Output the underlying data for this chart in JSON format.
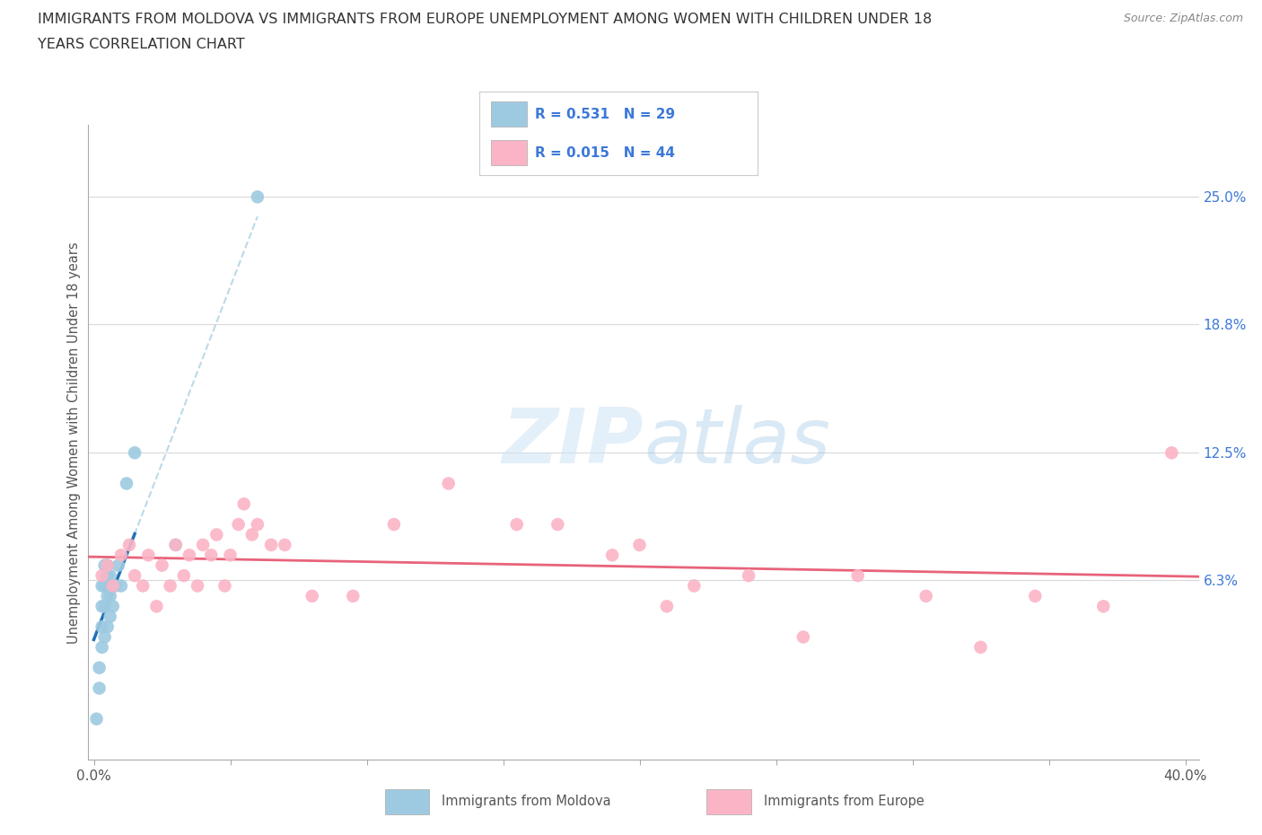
{
  "title_line1": "IMMIGRANTS FROM MOLDOVA VS IMMIGRANTS FROM EUROPE UNEMPLOYMENT AMONG WOMEN WITH CHILDREN UNDER 18",
  "title_line2": "YEARS CORRELATION CHART",
  "source": "Source: ZipAtlas.com",
  "ylabel": "Unemployment Among Women with Children Under 18 years",
  "xlim": [
    -0.002,
    0.405
  ],
  "ylim": [
    -0.025,
    0.285
  ],
  "xticks": [
    0.0,
    0.05,
    0.1,
    0.15,
    0.2,
    0.25,
    0.3,
    0.35,
    0.4
  ],
  "right_ytick_vals": [
    0.063,
    0.125,
    0.188,
    0.25
  ],
  "right_ytick_labels": [
    "6.3%",
    "12.5%",
    "18.8%",
    "25.0%"
  ],
  "moldova_color": "#9ecae1",
  "europe_color": "#fbb4c6",
  "moldova_R": 0.531,
  "moldova_N": 29,
  "europe_R": 0.015,
  "europe_N": 44,
  "moldova_line_color": "#2171b5",
  "moldova_dash_color": "#9ecae1",
  "europe_line_color": "#e8637a",
  "grid_color": "#d9d9d9",
  "moldova_points_x": [
    0.001,
    0.002,
    0.002,
    0.003,
    0.003,
    0.003,
    0.003,
    0.004,
    0.004,
    0.004,
    0.004,
    0.005,
    0.005,
    0.005,
    0.005,
    0.005,
    0.006,
    0.006,
    0.006,
    0.006,
    0.007,
    0.007,
    0.008,
    0.009,
    0.01,
    0.012,
    0.015,
    0.03,
    0.06
  ],
  "moldova_points_y": [
    -0.005,
    0.01,
    0.02,
    0.03,
    0.04,
    0.05,
    0.06,
    0.035,
    0.05,
    0.06,
    0.07,
    0.04,
    0.055,
    0.065,
    0.065,
    0.07,
    0.045,
    0.055,
    0.06,
    0.065,
    0.05,
    0.06,
    0.06,
    0.07,
    0.06,
    0.11,
    0.125,
    0.08,
    0.25
  ],
  "europe_points_x": [
    0.003,
    0.005,
    0.007,
    0.01,
    0.013,
    0.015,
    0.018,
    0.02,
    0.023,
    0.025,
    0.028,
    0.03,
    0.033,
    0.035,
    0.038,
    0.04,
    0.043,
    0.045,
    0.048,
    0.05,
    0.053,
    0.055,
    0.058,
    0.06,
    0.065,
    0.07,
    0.08,
    0.095,
    0.11,
    0.13,
    0.155,
    0.17,
    0.19,
    0.2,
    0.21,
    0.22,
    0.24,
    0.26,
    0.28,
    0.305,
    0.325,
    0.345,
    0.37,
    0.395
  ],
  "europe_points_y": [
    0.065,
    0.07,
    0.06,
    0.075,
    0.08,
    0.065,
    0.06,
    0.075,
    0.05,
    0.07,
    0.06,
    0.08,
    0.065,
    0.075,
    0.06,
    0.08,
    0.075,
    0.085,
    0.06,
    0.075,
    0.09,
    0.1,
    0.085,
    0.09,
    0.08,
    0.08,
    0.055,
    0.055,
    0.09,
    0.11,
    0.09,
    0.09,
    0.075,
    0.08,
    0.05,
    0.06,
    0.065,
    0.035,
    0.065,
    0.055,
    0.03,
    0.055,
    0.05,
    0.125
  ],
  "legend_R_color": "#3c78d8",
  "legend_text_color": "#3c78d8",
  "watermark_color": "#cde3f5"
}
